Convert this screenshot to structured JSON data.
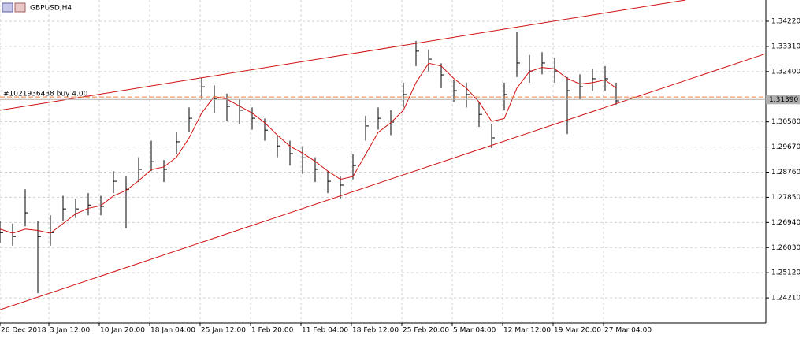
{
  "chart_data": {
    "type": "ohlc",
    "title": "GBPUSD,H4",
    "annotation": "#1021936438 buy 4.00",
    "x": [
      0,
      8,
      16,
      24,
      32,
      40,
      48,
      56,
      64,
      72,
      80,
      88,
      96,
      104,
      112,
      120,
      128,
      136,
      144,
      152,
      160,
      168,
      176,
      184,
      192,
      200,
      208,
      216,
      224,
      232,
      240,
      248,
      256,
      264,
      272,
      280,
      288,
      296,
      304,
      312,
      320,
      328,
      336,
      344,
      352,
      360,
      368,
      376,
      384,
      391
    ],
    "high": [
      1.27,
      1.269,
      1.2814,
      1.27,
      1.272,
      1.279,
      1.278,
      1.28,
      1.279,
      1.288,
      1.286,
      1.293,
      1.299,
      1.292,
      1.302,
      1.311,
      1.3219,
      1.319,
      1.316,
      1.314,
      1.311,
      1.307,
      1.301,
      1.299,
      1.297,
      1.293,
      1.288,
      1.286,
      1.294,
      1.308,
      1.311,
      1.31,
      1.32,
      1.3351,
      1.332,
      1.327,
      1.321,
      1.32,
      1.313,
      1.305,
      1.32,
      1.3385,
      1.33,
      1.331,
      1.329,
      1.322,
      1.323,
      1.325,
      1.326,
      1.32
    ],
    "low": [
      1.262,
      1.261,
      1.268,
      1.2438,
      1.261,
      1.27,
      1.271,
      1.272,
      1.272,
      1.28,
      1.2672,
      1.284,
      1.288,
      1.284,
      1.294,
      1.302,
      1.314,
      1.309,
      1.306,
      1.305,
      1.303,
      1.299,
      1.293,
      1.29,
      1.287,
      1.284,
      1.28,
      1.278,
      1.285,
      1.299,
      1.303,
      1.301,
      1.311,
      1.326,
      1.324,
      1.318,
      1.313,
      1.311,
      1.304,
      1.2963,
      1.31,
      1.322,
      1.32,
      1.323,
      1.32,
      1.3014,
      1.314,
      1.317,
      1.317,
      1.312
    ],
    "close": [
      1.2657,
      1.2643,
      1.2729,
      1.2643,
      1.2657,
      1.2743,
      1.2743,
      1.2757,
      1.2752,
      1.2843,
      1.2814,
      1.2886,
      1.2914,
      1.2886,
      1.2986,
      1.3071,
      1.3185,
      1.3142,
      1.3114,
      1.31,
      1.3071,
      1.3028,
      1.2971,
      1.2943,
      1.2928,
      1.2886,
      1.2843,
      1.2829,
      1.29,
      1.3043,
      1.3071,
      1.3057,
      1.3157,
      1.3314,
      1.3285,
      1.3228,
      1.3171,
      1.3157,
      1.3085,
      1.3,
      1.3157,
      1.3271,
      1.3242,
      1.3271,
      1.3242,
      1.3171,
      1.3185,
      1.3214,
      1.3214,
      1.3134
    ],
    "ma": [
      1.267,
      1.2655,
      1.267,
      1.2665,
      1.2655,
      1.269,
      1.2725,
      1.2745,
      1.2755,
      1.279,
      1.281,
      1.2845,
      1.2885,
      1.2895,
      1.293,
      1.3,
      1.309,
      1.315,
      1.314,
      1.3115,
      1.309,
      1.3055,
      1.301,
      1.297,
      1.2945,
      1.2915,
      1.288,
      1.285,
      1.286,
      1.294,
      1.302,
      1.3055,
      1.31,
      1.32,
      1.327,
      1.326,
      1.3215,
      1.318,
      1.313,
      1.306,
      1.307,
      1.318,
      1.324,
      1.3255,
      1.325,
      1.3215,
      1.3195,
      1.32,
      1.321,
      1.318
    ],
    "bar_color": "#000000",
    "ma_color": "#d01010",
    "trendlines": [
      {
        "x": [
          0,
          435
        ],
        "values": [
          1.31,
          1.3499
        ],
        "color": "#d01010"
      },
      {
        "x": [
          0,
          486
        ],
        "values": [
          1.2378,
          1.3305
        ],
        "color": "#d01010"
      }
    ],
    "order_line": 1.3148,
    "order_color": "#f08040",
    "bid_line": {
      "value": 1.3139,
      "label": "1.31390"
    },
    "xlim": [
      0,
      486
    ],
    "ylim": [
      1.233,
      1.3499
    ],
    "xticks": [
      {
        "value": 0,
        "label": "26 Dec 2018"
      },
      {
        "value": 31,
        "label": "3 Jan 12:00"
      },
      {
        "value": 63,
        "label": "10 Jan 20:00"
      },
      {
        "value": 95,
        "label": "18 Jan 04:00"
      },
      {
        "value": 127,
        "label": "25 Jan 12:00"
      },
      {
        "value": 159,
        "label": "1 Feb 20:00"
      },
      {
        "value": 191,
        "label": "11 Feb 04:00"
      },
      {
        "value": 223,
        "label": "18 Feb 12:00"
      },
      {
        "value": 255,
        "label": "25 Feb 20:00"
      },
      {
        "value": 287,
        "label": "5 Mar 04:00"
      },
      {
        "value": 319,
        "label": "12 Mar 12:00"
      },
      {
        "value": 351,
        "label": "19 Mar 20:00"
      },
      {
        "value": 383,
        "label": "27 Mar 04:00"
      }
    ],
    "yticks": [
      {
        "value": 1.3422,
        "label": "1.34220"
      },
      {
        "value": 1.3331,
        "label": "1.33310"
      },
      {
        "value": 1.324,
        "label": "1.32400"
      },
      {
        "value": 1.3058,
        "label": "1.30580"
      },
      {
        "value": 1.2967,
        "label": "1.29670"
      },
      {
        "value": 1.2876,
        "label": "1.28760"
      },
      {
        "value": 1.2785,
        "label": "1.27850"
      },
      {
        "value": 1.2694,
        "label": "1.26940"
      },
      {
        "value": 1.2603,
        "label": "1.26030"
      },
      {
        "value": 1.2512,
        "label": "1.25120"
      },
      {
        "value": 1.2421,
        "label": "1.24210"
      }
    ],
    "grid": true
  }
}
